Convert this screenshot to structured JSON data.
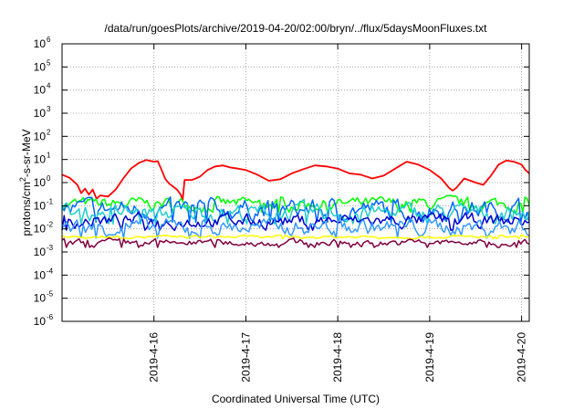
{
  "chart_data": {
    "type": "line",
    "title": "/data/run/goesPlots/archive/2019-04-20/02:00/bryn/../flux/5daysMoonFluxes.txt",
    "xlabel": "Coordinated Universal Time (UTC)",
    "ylabel": {
      "pre": "protons/cm",
      "sup": "2",
      "post": "-s-sr-MeV"
    },
    "y_scale": "log",
    "ylim": [
      1e-06,
      1000000.0
    ],
    "xlim": [
      "2019-04-15 00:00",
      "2019-04-20 02:00"
    ],
    "grid": true,
    "legend": "none",
    "y_ticks": [
      {
        "value": 1e-06,
        "mant": "10",
        "exp": "-6"
      },
      {
        "value": 1e-05,
        "mant": "10",
        "exp": "-5"
      },
      {
        "value": 0.0001,
        "mant": "10",
        "exp": "-4"
      },
      {
        "value": 0.001,
        "mant": "10",
        "exp": "-3"
      },
      {
        "value": 0.01,
        "mant": "10",
        "exp": "-2"
      },
      {
        "value": 0.1,
        "mant": "10",
        "exp": "-1"
      },
      {
        "value": 1,
        "mant": "10",
        "exp": "0"
      },
      {
        "value": 10,
        "mant": "10",
        "exp": "1"
      },
      {
        "value": 100,
        "mant": "10",
        "exp": "2"
      },
      {
        "value": 1000,
        "mant": "10",
        "exp": "3"
      },
      {
        "value": 10000,
        "mant": "10",
        "exp": "4"
      },
      {
        "value": 100000,
        "mant": "10",
        "exp": "5"
      },
      {
        "value": 1000000,
        "mant": "10",
        "exp": "6"
      }
    ],
    "x_ticks": [
      {
        "value": "2019-04-16",
        "label": "2019-4-16"
      },
      {
        "value": "2019-04-17",
        "label": "2019-4-17"
      },
      {
        "value": "2019-04-18",
        "label": "2019-4-18"
      },
      {
        "value": "2019-04-19",
        "label": "2019-4-19"
      },
      {
        "value": "2019-04-20",
        "label": "2019-4-20"
      }
    ],
    "series": [
      {
        "color": "#ff0000",
        "points": [
          [
            "2019-04-15 00:00",
            2.2
          ],
          [
            "2019-04-15 02:00",
            1.6
          ],
          [
            "2019-04-15 04:00",
            0.8
          ],
          [
            "2019-04-15 05:00",
            0.35
          ],
          [
            "2019-04-15 06:00",
            0.55
          ],
          [
            "2019-04-15 07:00",
            0.3
          ],
          [
            "2019-04-15 08:00",
            0.5
          ],
          [
            "2019-04-15 09:00",
            0.2
          ],
          [
            "2019-04-15 10:00",
            0.28
          ],
          [
            "2019-04-15 12:00",
            0.25
          ],
          [
            "2019-04-15 14:00",
            0.5
          ],
          [
            "2019-04-15 16:00",
            1.5
          ],
          [
            "2019-04-15 18:00",
            4.0
          ],
          [
            "2019-04-15 20:00",
            7.0
          ],
          [
            "2019-04-15 22:00",
            9.5
          ],
          [
            "2019-04-16 00:00",
            8.0
          ],
          [
            "2019-04-16 01:00",
            8.5
          ],
          [
            "2019-04-16 02:00",
            3.5
          ],
          [
            "2019-04-16 03:00",
            1.4
          ],
          [
            "2019-04-16 04:00",
            0.9
          ],
          [
            "2019-04-16 06:00",
            0.5
          ],
          [
            "2019-04-16 07:00",
            0.3
          ],
          [
            "2019-04-16 07:30",
            0.18
          ],
          [
            "2019-04-16 08:00",
            1.3
          ],
          [
            "2019-04-16 10:00",
            1.3
          ],
          [
            "2019-04-16 12:00",
            1.8
          ],
          [
            "2019-04-16 14:00",
            3.5
          ],
          [
            "2019-04-16 16:00",
            5.0
          ],
          [
            "2019-04-16 18:00",
            5.5
          ],
          [
            "2019-04-16 20:00",
            4.5
          ],
          [
            "2019-04-16 22:00",
            4.0
          ],
          [
            "2019-04-17 00:00",
            3.5
          ],
          [
            "2019-04-17 03:00",
            2.2
          ],
          [
            "2019-04-17 06:00",
            1.2
          ],
          [
            "2019-04-17 09:00",
            1.4
          ],
          [
            "2019-04-17 12:00",
            2.5
          ],
          [
            "2019-04-17 15:00",
            3.8
          ],
          [
            "2019-04-17 18:00",
            5.5
          ],
          [
            "2019-04-17 21:00",
            5.0
          ],
          [
            "2019-04-18 00:00",
            4.0
          ],
          [
            "2019-04-18 03:00",
            2.5
          ],
          [
            "2019-04-18 06:00",
            2.2
          ],
          [
            "2019-04-18 09:00",
            1.5
          ],
          [
            "2019-04-18 12:00",
            2.0
          ],
          [
            "2019-04-18 15:00",
            4.0
          ],
          [
            "2019-04-18 18:00",
            8.0
          ],
          [
            "2019-04-18 21:00",
            6.0
          ],
          [
            "2019-04-19 00:00",
            3.5
          ],
          [
            "2019-04-19 03:00",
            1.5
          ],
          [
            "2019-04-19 05:00",
            0.6
          ],
          [
            "2019-04-19 06:00",
            0.45
          ],
          [
            "2019-04-19 07:00",
            0.6
          ],
          [
            "2019-04-19 09:00",
            1.5
          ],
          [
            "2019-04-19 12:00",
            1.0
          ],
          [
            "2019-04-19 14:00",
            0.8
          ],
          [
            "2019-04-19 16:00",
            2.0
          ],
          [
            "2019-04-19 18:00",
            6.0
          ],
          [
            "2019-04-19 20:00",
            9.0
          ],
          [
            "2019-04-19 22:00",
            8.0
          ],
          [
            "2019-04-20 00:00",
            6.0
          ],
          [
            "2019-04-20 01:00",
            3.5
          ],
          [
            "2019-04-20 02:00",
            2.5
          ]
        ]
      },
      {
        "color": "#00ff00",
        "base": 0.12,
        "amp": 0.09
      },
      {
        "color": "#0066ff",
        "base": 0.07,
        "amp": 0.14
      },
      {
        "color": "#22cccc",
        "base": 0.05,
        "amp": 0.12
      },
      {
        "color": "#0000cc",
        "base": 0.022,
        "amp": 0.1
      },
      {
        "color": "#3399ff",
        "base": 0.012,
        "amp": 0.12
      },
      {
        "color": "#ffff00",
        "base": 0.0045,
        "amp": 0.02
      },
      {
        "color": "#800040",
        "base": 0.0025,
        "amp": 0.05
      }
    ]
  }
}
